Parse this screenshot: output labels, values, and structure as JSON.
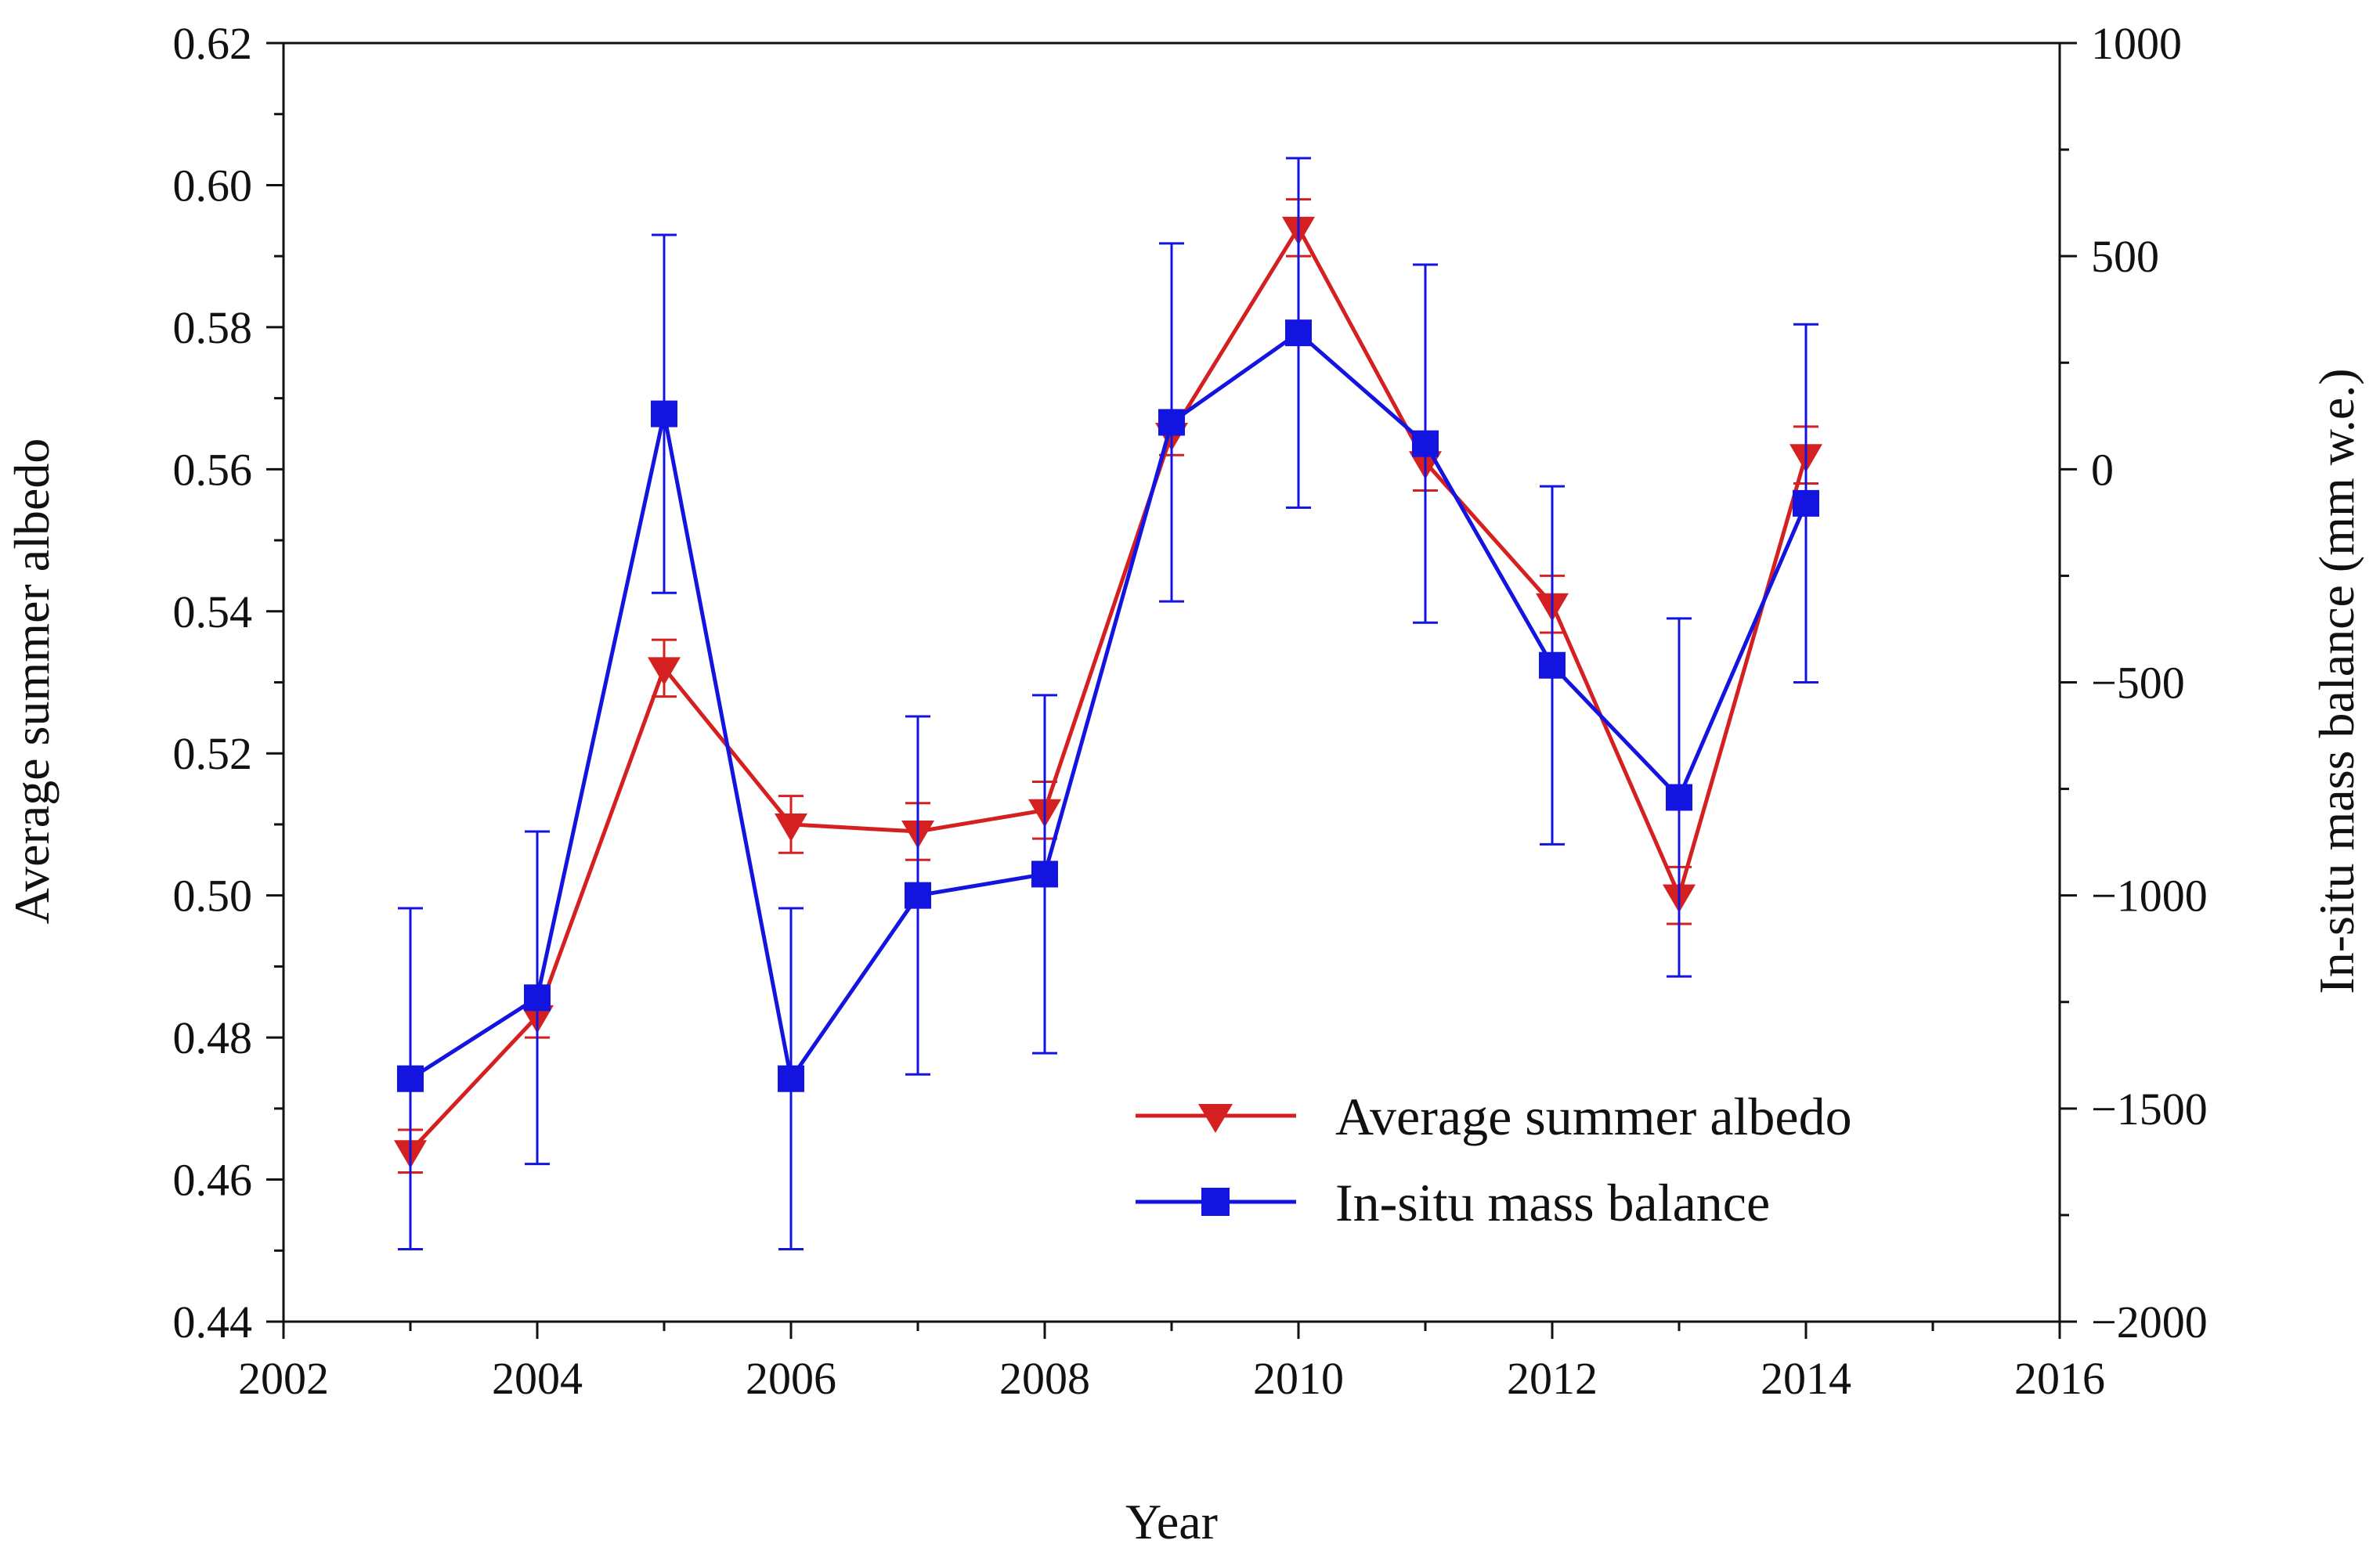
{
  "chart_data": {
    "type": "line",
    "x": [
      2003,
      2004,
      2005,
      2006,
      2007,
      2008,
      2009,
      2010,
      2011,
      2012,
      2013,
      2014
    ],
    "xlabel": "Year",
    "xlim": [
      2002,
      2016
    ],
    "xticks": [
      2002,
      2004,
      2006,
      2008,
      2010,
      2012,
      2014,
      2016
    ],
    "ylabel": "Average summer albedo",
    "ylim": [
      0.44,
      0.62
    ],
    "yticks": [
      "0.44",
      "0.46",
      "0.48",
      "0.50",
      "0.52",
      "0.54",
      "0.56",
      "0.58",
      "0.60",
      "0.62"
    ],
    "y2label": "In-situ mass balance (mm w.e.)",
    "y2lim": [
      -2000,
      1000
    ],
    "y2ticks": [
      "-2000",
      "-1500",
      "-1000",
      "-500",
      "0",
      "500",
      "1000"
    ],
    "grid": false,
    "legend_position": "bottom-right",
    "series": [
      {
        "name": "Average summer albedo",
        "axis": "left",
        "color": "#d42020",
        "marker": "triangle-down",
        "values": [
          0.464,
          0.483,
          0.532,
          0.51,
          0.509,
          0.512,
          0.565,
          0.594,
          0.561,
          0.541,
          0.5,
          0.562
        ],
        "error": [
          0.003,
          0.003,
          0.004,
          0.004,
          0.004,
          0.004,
          0.003,
          0.004,
          0.004,
          0.004,
          0.004,
          0.004
        ]
      },
      {
        "name": "In-situ mass balance",
        "axis": "right",
        "color": "#1414e0",
        "marker": "square",
        "values": [
          -1430,
          -1240,
          130,
          -1430,
          -1000,
          -950,
          110,
          320,
          60,
          -460,
          -770,
          -80
        ],
        "error": [
          400,
          390,
          420,
          400,
          420,
          420,
          420,
          410,
          420,
          420,
          420,
          420
        ]
      }
    ]
  }
}
